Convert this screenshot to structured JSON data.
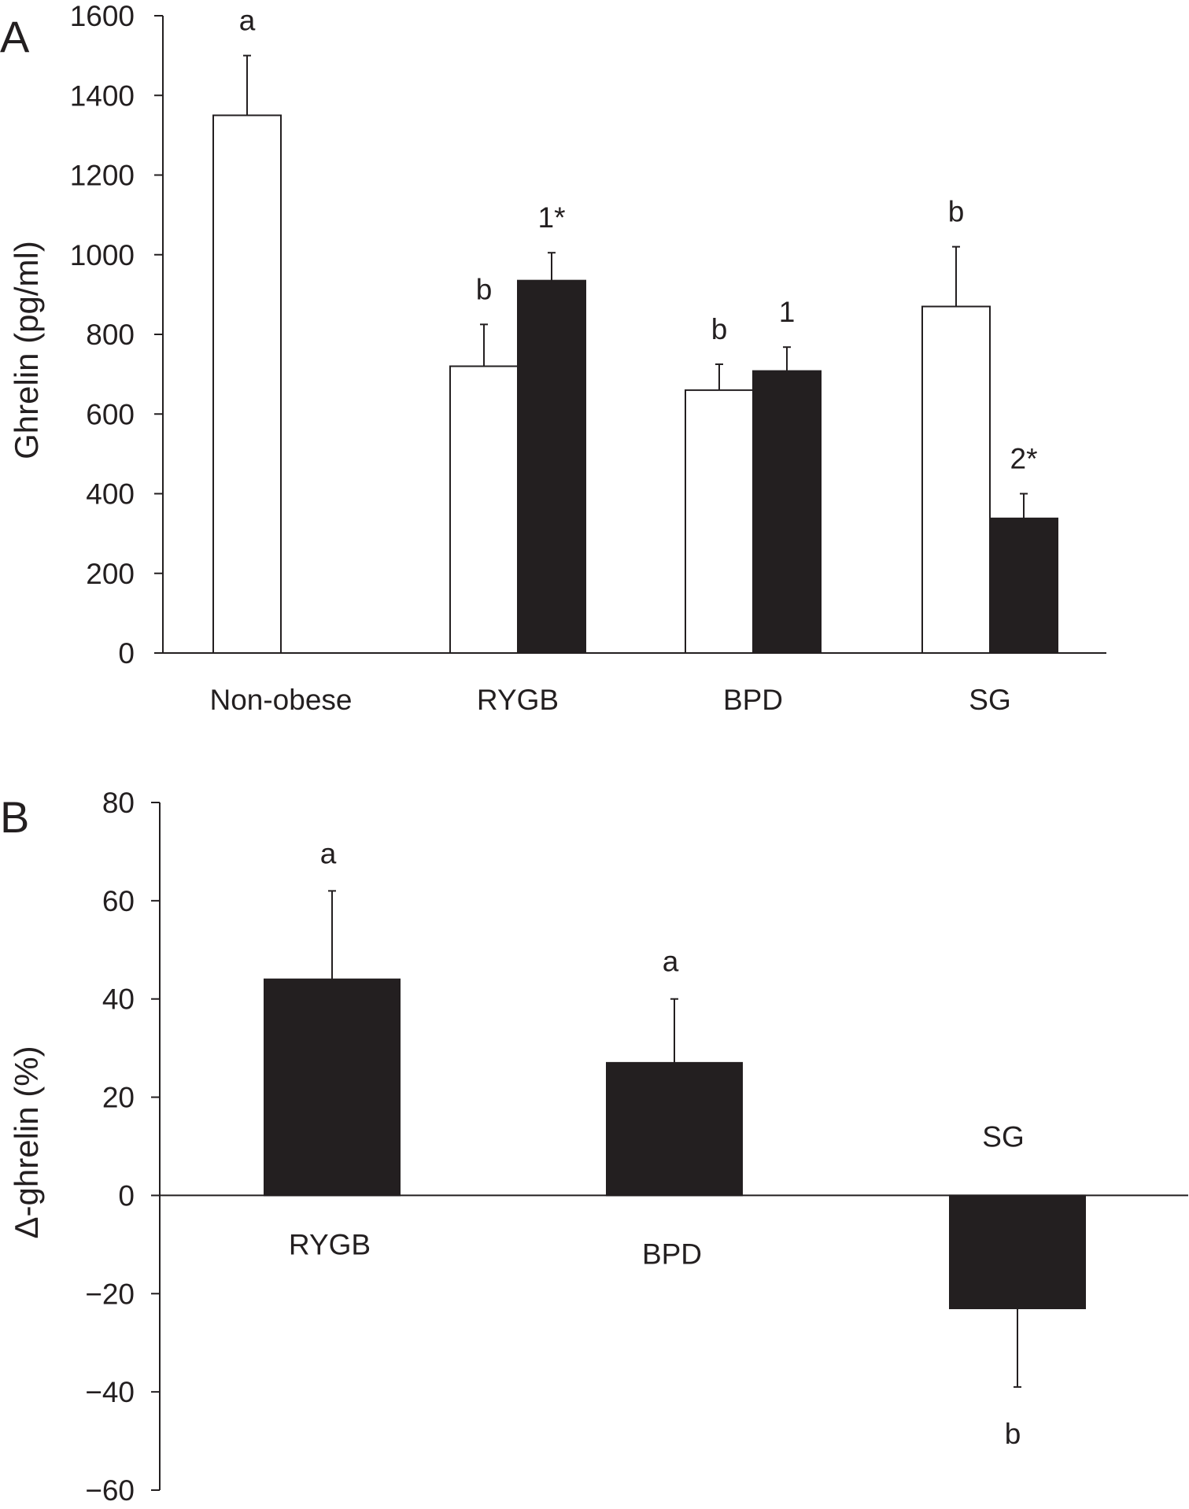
{
  "chart_data": [
    {
      "panel": "A",
      "type": "bar",
      "ylabel": "Ghrelin (pg/ml)",
      "xlabel": "",
      "ylim": [
        0,
        1600
      ],
      "yticks": [
        0,
        200,
        400,
        600,
        800,
        1000,
        1200,
        1400,
        1600
      ],
      "categories": [
        "Non-obese",
        "RYGB",
        "BPD",
        "SG"
      ],
      "series": [
        {
          "fill": "#ffffff",
          "values": [
            1350,
            720,
            660,
            870
          ],
          "errors": [
            150,
            105,
            65,
            150
          ],
          "labels": [
            "a",
            "b",
            "b",
            "b"
          ]
        },
        {
          "fill": "#231f20",
          "values": [
            null,
            935,
            708,
            338
          ],
          "errors": [
            null,
            70,
            60,
            62
          ],
          "labels": [
            null,
            "1*",
            "1",
            "2*"
          ]
        }
      ],
      "grid": false,
      "legend": "none"
    },
    {
      "panel": "B",
      "type": "bar",
      "ylabel": "Δ-ghrelin (%)",
      "xlabel": "",
      "ylim": [
        -60,
        80
      ],
      "yticks": [
        80,
        60,
        40,
        20,
        0,
        -20,
        -40,
        -60
      ],
      "ytick_labels": [
        "80",
        "60",
        "40",
        "20",
        "0",
        "−20",
        "−40",
        "−60"
      ],
      "categories": [
        "RYGB",
        "BPD",
        "SG"
      ],
      "series": [
        {
          "fill": "#231f20",
          "values": [
            44,
            27,
            -23
          ],
          "errors": [
            18,
            13,
            16
          ],
          "labels": [
            "a",
            "a",
            "b"
          ]
        }
      ],
      "grid": false,
      "legend": "none"
    }
  ]
}
